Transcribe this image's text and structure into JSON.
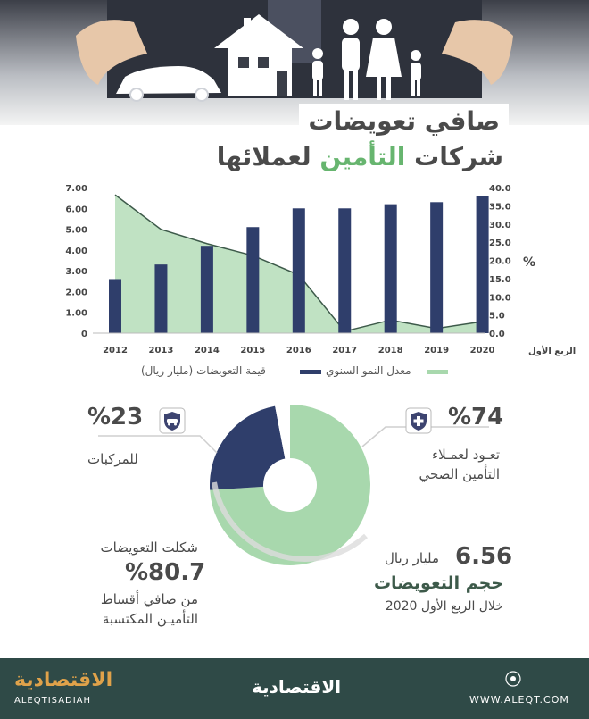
{
  "title": {
    "line1": "صافي تعويضات",
    "line2_part1": "شركات ",
    "line2_highlight": "التأمين",
    "line2_part2": " لعملائها"
  },
  "colors": {
    "bars": "#2f3e6b",
    "area": "#b9dfbd",
    "area_line": "#3d5a4a",
    "accent_green": "#67b56f",
    "footer": "#2f4a47"
  },
  "chart_data": {
    "type": "bar+area",
    "categories": [
      "2012",
      "2013",
      "2014",
      "2015",
      "2016",
      "2017",
      "2018",
      "2019",
      "2020"
    ],
    "x_last_label": "الربع الأول",
    "series": [
      {
        "name": "قيمة التعويضات (مليار ريال)",
        "type": "bar",
        "axis": "left",
        "values": [
          2.6,
          3.3,
          4.2,
          5.1,
          6.0,
          6.0,
          6.2,
          6.3,
          6.6
        ]
      },
      {
        "name": "معدل النمو السنوي",
        "type": "area",
        "axis": "right",
        "values": [
          38.0,
          28.5,
          24.6,
          21.3,
          16.0,
          0.5,
          3.6,
          1.3,
          3.2
        ]
      }
    ],
    "left_axis": {
      "ticks": [
        "7.00",
        "6.00",
        "5.00",
        "4.00",
        "3.00",
        "2.00",
        "1.00",
        "0"
      ],
      "ylim": [
        0,
        7
      ]
    },
    "right_axis": {
      "ticks": [
        "40.0",
        "35.0",
        "30.0",
        "25.0",
        "20.0",
        "15.0",
        "10.0",
        "5.0",
        "0.0"
      ],
      "ylim": [
        0,
        40
      ],
      "unit": "%"
    }
  },
  "legend": {
    "bars_label": "قيمة التعويضات (مليار ريال)",
    "area_label": "معدل النمو السنوي"
  },
  "donut": {
    "slices": [
      {
        "label": "تعود لعملاء التأمين الصحي",
        "value": 74,
        "color": "#a8d8ad"
      },
      {
        "label": "للمركبات",
        "value": 23,
        "color": "#2f3e6b"
      },
      {
        "label": "",
        "value": 3,
        "color": "#ffffff"
      }
    ]
  },
  "stats": {
    "health_pct": "%74",
    "health_line1": "تعـود لعمـلاء",
    "health_line2": "التأمين الصحي",
    "vehicles_pct": "%23",
    "vehicles_label": "للمركبات",
    "premiums_intro": "شكلت التعويضات",
    "premiums_pct": "%80.7",
    "premiums_line1": "من صافي أقساط",
    "premiums_line2": "التأميـن المكتسبة",
    "volume_value": "6.56",
    "volume_unit": "مليار ريال",
    "volume_title": "حجم التعويضات",
    "volume_period": "خلال الربع الأول 2020"
  },
  "footer": {
    "url": "WWW.ALEQT.COM",
    "brand_ar": "الاقتصادية",
    "brand_en": "ALEQTISADIAH"
  }
}
